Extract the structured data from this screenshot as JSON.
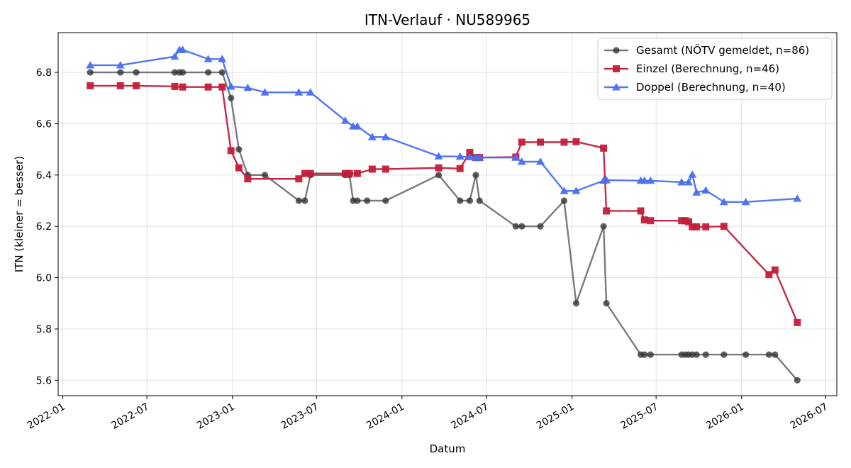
{
  "chart_data": {
    "type": "line",
    "title": "ITN-Verlauf · NU589965",
    "xlabel": "Datum",
    "ylabel": "ITN  (kleiner = besser)",
    "x_range": [
      "2021-12-22",
      "2026-07-25"
    ],
    "ylim": [
      5.54,
      6.955
    ],
    "x_ticks": [
      "2022-01",
      "2022-07",
      "2023-01",
      "2023-07",
      "2024-01",
      "2024-07",
      "2025-01",
      "2025-07",
      "2026-01",
      "2026-07"
    ],
    "y_ticks": [
      "5.6",
      "5.8",
      "6.0",
      "6.2",
      "6.4",
      "6.6",
      "6.8"
    ],
    "grid": true,
    "legend_position": "top-right",
    "series": [
      {
        "name": "Gesamt (NÖTV gemeldet, n=86)",
        "color": "#555555",
        "marker": "circle",
        "points": [
          [
            "2022-03-01",
            6.8
          ],
          [
            "2022-05-05",
            6.8
          ],
          [
            "2022-06-08",
            6.8
          ],
          [
            "2022-08-30",
            6.8
          ],
          [
            "2022-09-09",
            6.8
          ],
          [
            "2022-09-16",
            6.8
          ],
          [
            "2022-11-10",
            6.8
          ],
          [
            "2022-12-10",
            6.8
          ],
          [
            "2022-12-29",
            6.7
          ],
          [
            "2023-01-15",
            6.5
          ],
          [
            "2023-02-03",
            6.4
          ],
          [
            "2023-03-12",
            6.4
          ],
          [
            "2023-05-24",
            6.3
          ],
          [
            "2023-06-06",
            6.3
          ],
          [
            "2023-06-18",
            6.4
          ],
          [
            "2023-09-01",
            6.4
          ],
          [
            "2023-09-10",
            6.4
          ],
          [
            "2023-09-18",
            6.3
          ],
          [
            "2023-09-27",
            6.3
          ],
          [
            "2023-10-18",
            6.3
          ],
          [
            "2023-11-27",
            6.3
          ],
          [
            "2024-03-20",
            6.4
          ],
          [
            "2024-05-05",
            6.3
          ],
          [
            "2024-05-26",
            6.3
          ],
          [
            "2024-06-08",
            6.4
          ],
          [
            "2024-06-16",
            6.3
          ],
          [
            "2024-09-02",
            6.2
          ],
          [
            "2024-09-15",
            6.2
          ],
          [
            "2024-10-25",
            6.2
          ],
          [
            "2024-12-15",
            6.3
          ],
          [
            "2025-01-10",
            5.9
          ],
          [
            "2025-03-10",
            6.2
          ],
          [
            "2025-03-16",
            5.9
          ],
          [
            "2025-05-29",
            5.7
          ],
          [
            "2025-06-06",
            5.7
          ],
          [
            "2025-06-19",
            5.7
          ],
          [
            "2025-08-25",
            5.7
          ],
          [
            "2025-09-02",
            5.7
          ],
          [
            "2025-09-09",
            5.7
          ],
          [
            "2025-09-17",
            5.7
          ],
          [
            "2025-09-26",
            5.7
          ],
          [
            "2025-10-16",
            5.7
          ],
          [
            "2025-11-24",
            5.7
          ],
          [
            "2026-01-10",
            5.7
          ],
          [
            "2026-03-01",
            5.7
          ],
          [
            "2026-03-14",
            5.7
          ],
          [
            "2026-05-01",
            5.6
          ]
        ]
      },
      {
        "name": "Einzel (Berechnung, n=46)",
        "color": "#c41e3a",
        "marker": "square",
        "points": [
          [
            "2022-03-01",
            6.748
          ],
          [
            "2022-05-05",
            6.748
          ],
          [
            "2022-06-08",
            6.748
          ],
          [
            "2022-08-30",
            6.745
          ],
          [
            "2022-09-16",
            6.743
          ],
          [
            "2022-11-10",
            6.743
          ],
          [
            "2022-12-10",
            6.743
          ],
          [
            "2022-12-29",
            6.495
          ],
          [
            "2023-01-15",
            6.428
          ],
          [
            "2023-02-03",
            6.385
          ],
          [
            "2023-05-24",
            6.385
          ],
          [
            "2023-06-06",
            6.406
          ],
          [
            "2023-06-18",
            6.406
          ],
          [
            "2023-09-01",
            6.406
          ],
          [
            "2023-09-10",
            6.406
          ],
          [
            "2023-09-27",
            6.406
          ],
          [
            "2023-10-29",
            6.423
          ],
          [
            "2023-11-27",
            6.423
          ],
          [
            "2024-03-20",
            6.428
          ],
          [
            "2024-05-05",
            6.425
          ],
          [
            "2024-05-26",
            6.488
          ],
          [
            "2024-06-08",
            6.468
          ],
          [
            "2024-06-16",
            6.468
          ],
          [
            "2024-09-02",
            6.47
          ],
          [
            "2024-09-15",
            6.528
          ],
          [
            "2024-10-25",
            6.528
          ],
          [
            "2024-12-15",
            6.528
          ],
          [
            "2025-01-10",
            6.53
          ],
          [
            "2025-03-10",
            6.505
          ],
          [
            "2025-03-16",
            6.26
          ],
          [
            "2025-05-29",
            6.26
          ],
          [
            "2025-06-06",
            6.225
          ],
          [
            "2025-06-19",
            6.222
          ],
          [
            "2025-08-25",
            6.222
          ],
          [
            "2025-09-02",
            6.222
          ],
          [
            "2025-09-09",
            6.218
          ],
          [
            "2025-09-17",
            6.198
          ],
          [
            "2025-09-26",
            6.198
          ],
          [
            "2025-10-16",
            6.198
          ],
          [
            "2025-11-24",
            6.2
          ],
          [
            "2026-03-01",
            6.012
          ],
          [
            "2026-03-14",
            6.03
          ],
          [
            "2026-05-01",
            5.825
          ]
        ]
      },
      {
        "name": "Doppel (Berechnung, n=40)",
        "color": "#4a6ff0",
        "marker": "triangle",
        "points": [
          [
            "2022-03-01",
            6.828
          ],
          [
            "2022-05-05",
            6.828
          ],
          [
            "2022-08-30",
            6.862
          ],
          [
            "2022-09-09",
            6.888
          ],
          [
            "2022-09-16",
            6.888
          ],
          [
            "2022-11-10",
            6.852
          ],
          [
            "2022-12-10",
            6.852
          ],
          [
            "2022-12-29",
            6.745
          ],
          [
            "2023-02-03",
            6.74
          ],
          [
            "2023-03-12",
            6.722
          ],
          [
            "2023-05-24",
            6.722
          ],
          [
            "2023-06-18",
            6.722
          ],
          [
            "2023-09-01",
            6.612
          ],
          [
            "2023-09-18",
            6.59
          ],
          [
            "2023-09-27",
            6.59
          ],
          [
            "2023-10-29",
            6.548
          ],
          [
            "2023-11-27",
            6.548
          ],
          [
            "2024-03-20",
            6.473
          ],
          [
            "2024-05-05",
            6.472
          ],
          [
            "2024-05-26",
            6.47
          ],
          [
            "2024-06-08",
            6.468
          ],
          [
            "2024-06-16",
            6.468
          ],
          [
            "2024-09-02",
            6.468
          ],
          [
            "2024-09-15",
            6.452
          ],
          [
            "2024-10-25",
            6.452
          ],
          [
            "2024-12-15",
            6.338
          ],
          [
            "2025-01-10",
            6.338
          ],
          [
            "2025-03-10",
            6.378
          ],
          [
            "2025-03-16",
            6.38
          ],
          [
            "2025-05-29",
            6.378
          ],
          [
            "2025-06-06",
            6.378
          ],
          [
            "2025-06-19",
            6.378
          ],
          [
            "2025-08-25",
            6.372
          ],
          [
            "2025-09-09",
            6.372
          ],
          [
            "2025-09-17",
            6.402
          ],
          [
            "2025-09-26",
            6.332
          ],
          [
            "2025-10-16",
            6.34
          ],
          [
            "2025-11-24",
            6.295
          ],
          [
            "2026-01-10",
            6.295
          ],
          [
            "2026-05-01",
            6.308
          ]
        ]
      }
    ]
  }
}
